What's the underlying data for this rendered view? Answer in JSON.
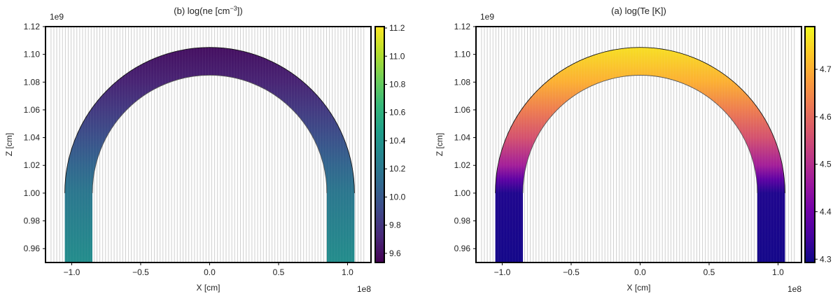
{
  "chart_data": [
    {
      "type": "heatmap",
      "title": "(b) log(ne [cm",
      "title_sup": "−3",
      "title_end": "])",
      "xlabel": "X [cm]",
      "ylabel": "Z [cm]",
      "x_offset_label": "1e8",
      "y_offset_label": "1e9",
      "xlim": [
        -1.19,
        1.17
      ],
      "ylim": [
        0.95,
        1.12
      ],
      "xticks": [
        "−1.0",
        "−0.5",
        "0.0",
        "0.5",
        "1.0"
      ],
      "xtick_values": [
        -1.0,
        -0.5,
        0.0,
        0.5,
        1.0
      ],
      "yticks": [
        "0.96",
        "0.98",
        "1.00",
        "1.02",
        "1.04",
        "1.06",
        "1.08",
        "1.10",
        "1.12"
      ],
      "ytick_values": [
        0.96,
        0.98,
        1.0,
        1.02,
        1.04,
        1.06,
        1.08,
        1.1,
        1.12
      ],
      "colormap": "viridis",
      "colorbar_range": [
        9.535,
        11.21
      ],
      "colorbar_ticks": [
        "9.6",
        "9.8",
        "10.0",
        "10.2",
        "10.4",
        "10.6",
        "10.8",
        "11.0",
        "11.2"
      ],
      "colorbar_tick_values": [
        9.6,
        9.8,
        10.0,
        10.2,
        10.4,
        10.6,
        10.8,
        11.0,
        11.2
      ],
      "loop": {
        "center_z": 1.0,
        "inner_radius": 0.85,
        "outer_radius": 1.05,
        "base_z": 0.95
      },
      "profile_z": [
        0.95,
        1.0,
        1.02,
        1.04,
        1.06,
        1.08,
        1.105
      ],
      "profile_values": [
        10.35,
        10.2,
        10.08,
        9.95,
        9.82,
        9.7,
        9.6
      ]
    },
    {
      "type": "heatmap",
      "title": "(a) log(Te [K])",
      "title_sup": "",
      "title_end": "",
      "xlabel": "X [cm]",
      "ylabel": "Z [cm]",
      "x_offset_label": "1e8",
      "y_offset_label": "1e9",
      "xlim": [
        -1.19,
        1.17
      ],
      "ylim": [
        0.95,
        1.12
      ],
      "xticks": [
        "−1.0",
        "−0.5",
        "0.0",
        "0.5",
        "1.0"
      ],
      "xtick_values": [
        -1.0,
        -0.5,
        0.0,
        0.5,
        1.0
      ],
      "yticks": [
        "0.96",
        "0.98",
        "1.00",
        "1.02",
        "1.04",
        "1.06",
        "1.08",
        "1.10",
        "1.12"
      ],
      "ytick_values": [
        0.96,
        0.98,
        1.0,
        1.02,
        1.04,
        1.06,
        1.08,
        1.1,
        1.12
      ],
      "colormap": "plasma",
      "colorbar_range": [
        4.293,
        4.79
      ],
      "colorbar_ticks": [
        "4.3",
        "4.4",
        "4.5",
        "4.6",
        "4.7"
      ],
      "colorbar_tick_values": [
        4.3,
        4.4,
        4.5,
        4.6,
        4.7
      ],
      "loop": {
        "center_z": 1.0,
        "inner_radius": 0.85,
        "outer_radius": 1.05,
        "base_z": 0.95
      },
      "profile_z": [
        0.95,
        1.0,
        1.01,
        1.02,
        1.04,
        1.06,
        1.08,
        1.105
      ],
      "profile_values": [
        4.3,
        4.31,
        4.38,
        4.47,
        4.56,
        4.63,
        4.7,
        4.76
      ]
    }
  ]
}
